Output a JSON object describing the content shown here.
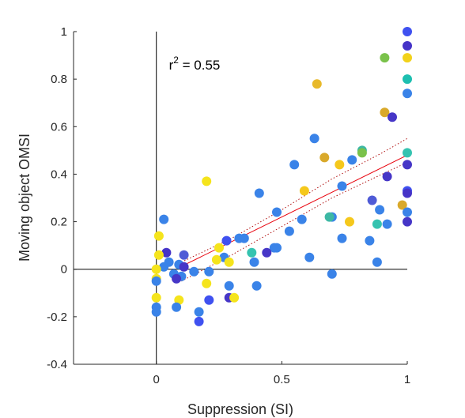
{
  "chart_data": {
    "type": "scatter",
    "title": "",
    "xlabel": "Suppression (SI)",
    "ylabel": "Moving object OMSI",
    "xlim": [
      -0.33,
      1.0
    ],
    "ylim": [
      -0.4,
      1.0
    ],
    "xticks": [
      0,
      0.5,
      1
    ],
    "xtick_labels": [
      "0",
      "0.5",
      "1"
    ],
    "yticks": [
      -0.4,
      -0.2,
      0,
      0.2,
      0.4,
      0.6,
      0.8,
      1
    ],
    "ytick_labels": [
      "-0.4",
      "-0.2",
      "0",
      "0.2",
      "0.4",
      "0.6",
      "0.8",
      "1"
    ],
    "grid": false,
    "annotation": {
      "text": "r",
      "sup": "2",
      "rest": " = 0.55",
      "x": 0.05,
      "y": 0.84
    },
    "reference_lines": {
      "x0": true,
      "y0": true,
      "color": "#000000"
    },
    "fit": {
      "slope": 0.52,
      "intercept": -0.04,
      "color": "#e8000b"
    },
    "ci": {
      "upper": [
        [
          0.1,
          0.03
        ],
        [
          0.3,
          0.13
        ],
        [
          0.5,
          0.25
        ],
        [
          0.7,
          0.38
        ],
        [
          0.9,
          0.49
        ],
        [
          1.0,
          0.55
        ]
      ],
      "lower": [
        [
          0.1,
          -0.05
        ],
        [
          0.3,
          0.06
        ],
        [
          0.5,
          0.18
        ],
        [
          0.7,
          0.3
        ],
        [
          0.9,
          0.4
        ],
        [
          1.0,
          0.45
        ]
      ],
      "color": "#b01010"
    },
    "points": [
      {
        "x": 1.0,
        "y": 1.0,
        "c": "#3f51f0"
      },
      {
        "x": 1.0,
        "y": 0.94,
        "c": "#4634c8"
      },
      {
        "x": 0.91,
        "y": 0.89,
        "c": "#7ac24b"
      },
      {
        "x": 1.0,
        "y": 0.89,
        "c": "#f2d21b"
      },
      {
        "x": 1.0,
        "y": 0.8,
        "c": "#1dbfb0"
      },
      {
        "x": 0.64,
        "y": 0.78,
        "c": "#e8b92a"
      },
      {
        "x": 1.0,
        "y": 0.74,
        "c": "#3a83e8"
      },
      {
        "x": 0.91,
        "y": 0.66,
        "c": "#d9a92b"
      },
      {
        "x": 0.94,
        "y": 0.64,
        "c": "#4636c7"
      },
      {
        "x": 0.63,
        "y": 0.55,
        "c": "#3a83e8"
      },
      {
        "x": 0.82,
        "y": 0.5,
        "c": "#3db8a4"
      },
      {
        "x": 0.82,
        "y": 0.49,
        "c": "#7ac24b"
      },
      {
        "x": 1.0,
        "y": 0.49,
        "c": "#35c3b0"
      },
      {
        "x": 0.78,
        "y": 0.46,
        "c": "#3a83e8"
      },
      {
        "x": 0.67,
        "y": 0.47,
        "c": "#d9a92b"
      },
      {
        "x": 0.73,
        "y": 0.44,
        "c": "#f5c81c"
      },
      {
        "x": 0.55,
        "y": 0.44,
        "c": "#3a83e8"
      },
      {
        "x": 1.0,
        "y": 0.44,
        "c": "#4636c7"
      },
      {
        "x": 0.92,
        "y": 0.39,
        "c": "#4636c7"
      },
      {
        "x": 0.74,
        "y": 0.35,
        "c": "#3a83e8"
      },
      {
        "x": 0.2,
        "y": 0.37,
        "c": "#f5e41c"
      },
      {
        "x": 0.41,
        "y": 0.32,
        "c": "#3a83e8"
      },
      {
        "x": 0.59,
        "y": 0.33,
        "c": "#f5c81c"
      },
      {
        "x": 1.0,
        "y": 0.33,
        "c": "#3f51f0"
      },
      {
        "x": 1.0,
        "y": 0.32,
        "c": "#4634c8"
      },
      {
        "x": 0.86,
        "y": 0.29,
        "c": "#4f5bd6"
      },
      {
        "x": 0.98,
        "y": 0.27,
        "c": "#d9a92b"
      },
      {
        "x": 0.89,
        "y": 0.25,
        "c": "#3a83e8"
      },
      {
        "x": 1.0,
        "y": 0.24,
        "c": "#3a83e8"
      },
      {
        "x": 0.48,
        "y": 0.24,
        "c": "#3a83e8"
      },
      {
        "x": 0.7,
        "y": 0.22,
        "c": "#3a83e8"
      },
      {
        "x": 0.69,
        "y": 0.22,
        "c": "#3db8a4"
      },
      {
        "x": 0.58,
        "y": 0.21,
        "c": "#3a83e8"
      },
      {
        "x": 1.0,
        "y": 0.2,
        "c": "#4636c7"
      },
      {
        "x": 0.77,
        "y": 0.2,
        "c": "#f5c81c"
      },
      {
        "x": 0.03,
        "y": 0.21,
        "c": "#3a83e8"
      },
      {
        "x": 0.88,
        "y": 0.19,
        "c": "#35c3b0"
      },
      {
        "x": 0.92,
        "y": 0.19,
        "c": "#3a83e8"
      },
      {
        "x": 0.53,
        "y": 0.16,
        "c": "#3a83e8"
      },
      {
        "x": 0.01,
        "y": 0.14,
        "c": "#f5e41c"
      },
      {
        "x": 0.33,
        "y": 0.13,
        "c": "#3a83e8"
      },
      {
        "x": 0.35,
        "y": 0.13,
        "c": "#3a83e8"
      },
      {
        "x": 0.74,
        "y": 0.13,
        "c": "#3a83e8"
      },
      {
        "x": 0.28,
        "y": 0.12,
        "c": "#3f51f0"
      },
      {
        "x": 0.85,
        "y": 0.12,
        "c": "#3a83e8"
      },
      {
        "x": 0.25,
        "y": 0.09,
        "c": "#f5e41c"
      },
      {
        "x": 0.47,
        "y": 0.09,
        "c": "#3a83e8"
      },
      {
        "x": 0.48,
        "y": 0.09,
        "c": "#3a83e8"
      },
      {
        "x": 0.04,
        "y": 0.07,
        "c": "#4634c8"
      },
      {
        "x": 0.38,
        "y": 0.07,
        "c": "#35c3b0"
      },
      {
        "x": 0.44,
        "y": 0.07,
        "c": "#4636c7"
      },
      {
        "x": 0.11,
        "y": 0.06,
        "c": "#4f5bd6"
      },
      {
        "x": 0.01,
        "y": 0.06,
        "c": "#f5e41c"
      },
      {
        "x": 0.61,
        "y": 0.05,
        "c": "#3a83e8"
      },
      {
        "x": 0.27,
        "y": 0.05,
        "c": "#3a83e8"
      },
      {
        "x": 0.24,
        "y": 0.04,
        "c": "#f5e41c"
      },
      {
        "x": 0.29,
        "y": 0.03,
        "c": "#f5e41c"
      },
      {
        "x": 0.39,
        "y": 0.03,
        "c": "#3a83e8"
      },
      {
        "x": 0.88,
        "y": 0.03,
        "c": "#3a83e8"
      },
      {
        "x": 0.05,
        "y": 0.03,
        "c": "#3a83e8"
      },
      {
        "x": 0.09,
        "y": 0.02,
        "c": "#3a83e8"
      },
      {
        "x": 0.11,
        "y": 0.01,
        "c": "#4636c7"
      },
      {
        "x": 0.03,
        "y": 0.01,
        "c": "#3a83e8"
      },
      {
        "x": 0.0,
        "y": 0.0,
        "c": "#f5e41c"
      },
      {
        "x": 0.07,
        "y": -0.02,
        "c": "#3a83e8"
      },
      {
        "x": 0.1,
        "y": -0.03,
        "c": "#3a83e8"
      },
      {
        "x": 0.15,
        "y": -0.01,
        "c": "#3a83e8"
      },
      {
        "x": 0.21,
        "y": -0.01,
        "c": "#3a83e8"
      },
      {
        "x": 0.08,
        "y": -0.04,
        "c": "#4636c7"
      },
      {
        "x": 0.0,
        "y": -0.04,
        "c": "#f5e41c"
      },
      {
        "x": 0.0,
        "y": -0.05,
        "c": "#3a83e8"
      },
      {
        "x": 0.2,
        "y": -0.06,
        "c": "#f5e41c"
      },
      {
        "x": 0.29,
        "y": -0.07,
        "c": "#3a83e8"
      },
      {
        "x": 0.4,
        "y": -0.07,
        "c": "#3a83e8"
      },
      {
        "x": 0.7,
        "y": -0.02,
        "c": "#3a83e8"
      },
      {
        "x": 0.0,
        "y": -0.12,
        "c": "#f5e41c"
      },
      {
        "x": 0.29,
        "y": -0.12,
        "c": "#4636c7"
      },
      {
        "x": 0.31,
        "y": -0.12,
        "c": "#f5e41c"
      },
      {
        "x": 0.21,
        "y": -0.13,
        "c": "#3f51f0"
      },
      {
        "x": 0.09,
        "y": -0.13,
        "c": "#f5e41c"
      },
      {
        "x": 0.08,
        "y": -0.16,
        "c": "#3a83e8"
      },
      {
        "x": 0.0,
        "y": -0.16,
        "c": "#3a83e8"
      },
      {
        "x": 0.0,
        "y": -0.18,
        "c": "#3a83e8"
      },
      {
        "x": 0.17,
        "y": -0.18,
        "c": "#3a83e8"
      },
      {
        "x": 0.17,
        "y": -0.22,
        "c": "#3f51f0"
      }
    ]
  }
}
